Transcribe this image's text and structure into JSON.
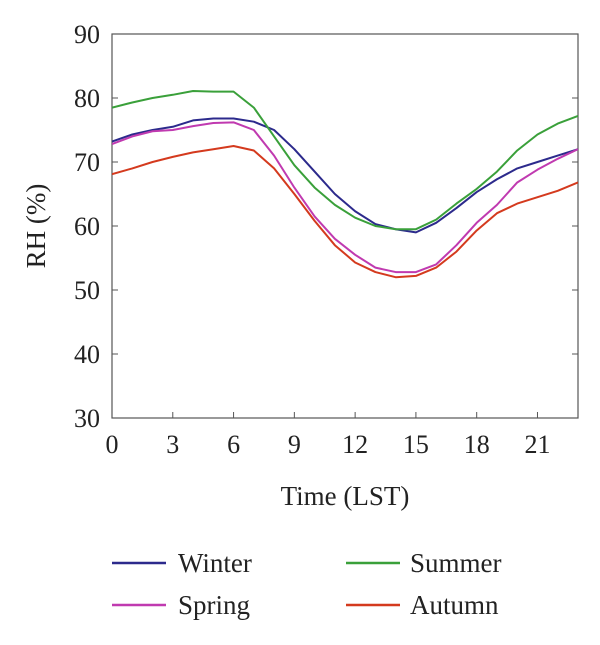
{
  "chart_data": {
    "type": "line",
    "title": "",
    "xlabel": "Time (LST)",
    "ylabel": "RH (%)",
    "xlim": [
      0,
      23
    ],
    "ylim": [
      30,
      90
    ],
    "xticks": [
      0,
      3,
      6,
      9,
      12,
      15,
      18,
      21
    ],
    "yticks": [
      30,
      40,
      50,
      60,
      70,
      80,
      90
    ],
    "grid": false,
    "legend_position": "bottom",
    "x": [
      0,
      1,
      2,
      3,
      4,
      5,
      6,
      7,
      8,
      9,
      10,
      11,
      12,
      13,
      14,
      15,
      16,
      17,
      18,
      19,
      20,
      21,
      22,
      23
    ],
    "series": [
      {
        "name": "Winter",
        "color": "#2c2a8c",
        "values": [
          73.2,
          74.3,
          75.0,
          75.5,
          76.5,
          76.8,
          76.8,
          76.3,
          75.0,
          72.0,
          68.5,
          65.0,
          62.3,
          60.3,
          59.5,
          59.0,
          60.5,
          62.8,
          65.3,
          67.3,
          69.0,
          70.0,
          71.0,
          72.0
        ]
      },
      {
        "name": "Summer",
        "color": "#3aa03a",
        "values": [
          78.5,
          79.3,
          80.0,
          80.5,
          81.1,
          81.0,
          81.0,
          78.5,
          74.0,
          69.5,
          66.0,
          63.3,
          61.3,
          60.0,
          59.5,
          59.5,
          61.0,
          63.5,
          65.8,
          68.5,
          71.8,
          74.3,
          76.0,
          77.2
        ]
      },
      {
        "name": "Spring",
        "color": "#c03ab0",
        "values": [
          72.8,
          74.0,
          74.8,
          75.0,
          75.6,
          76.1,
          76.2,
          75.0,
          71.0,
          66.0,
          61.5,
          58.0,
          55.5,
          53.5,
          52.8,
          52.8,
          54.0,
          57.0,
          60.5,
          63.3,
          66.8,
          68.8,
          70.5,
          72.0
        ]
      },
      {
        "name": "Autumn",
        "color": "#d43a1e",
        "values": [
          68.1,
          69.0,
          70.0,
          70.8,
          71.5,
          72.0,
          72.5,
          71.8,
          69.0,
          65.0,
          60.8,
          57.0,
          54.3,
          52.8,
          52.0,
          52.2,
          53.5,
          56.0,
          59.3,
          62.0,
          63.5,
          64.5,
          65.5,
          66.8
        ]
      }
    ]
  },
  "legend": {
    "items": [
      {
        "label": "Winter",
        "color": "#2c2a8c"
      },
      {
        "label": "Summer",
        "color": "#3aa03a"
      },
      {
        "label": "Spring",
        "color": "#c03ab0"
      },
      {
        "label": "Autumn",
        "color": "#d43a1e"
      }
    ]
  }
}
